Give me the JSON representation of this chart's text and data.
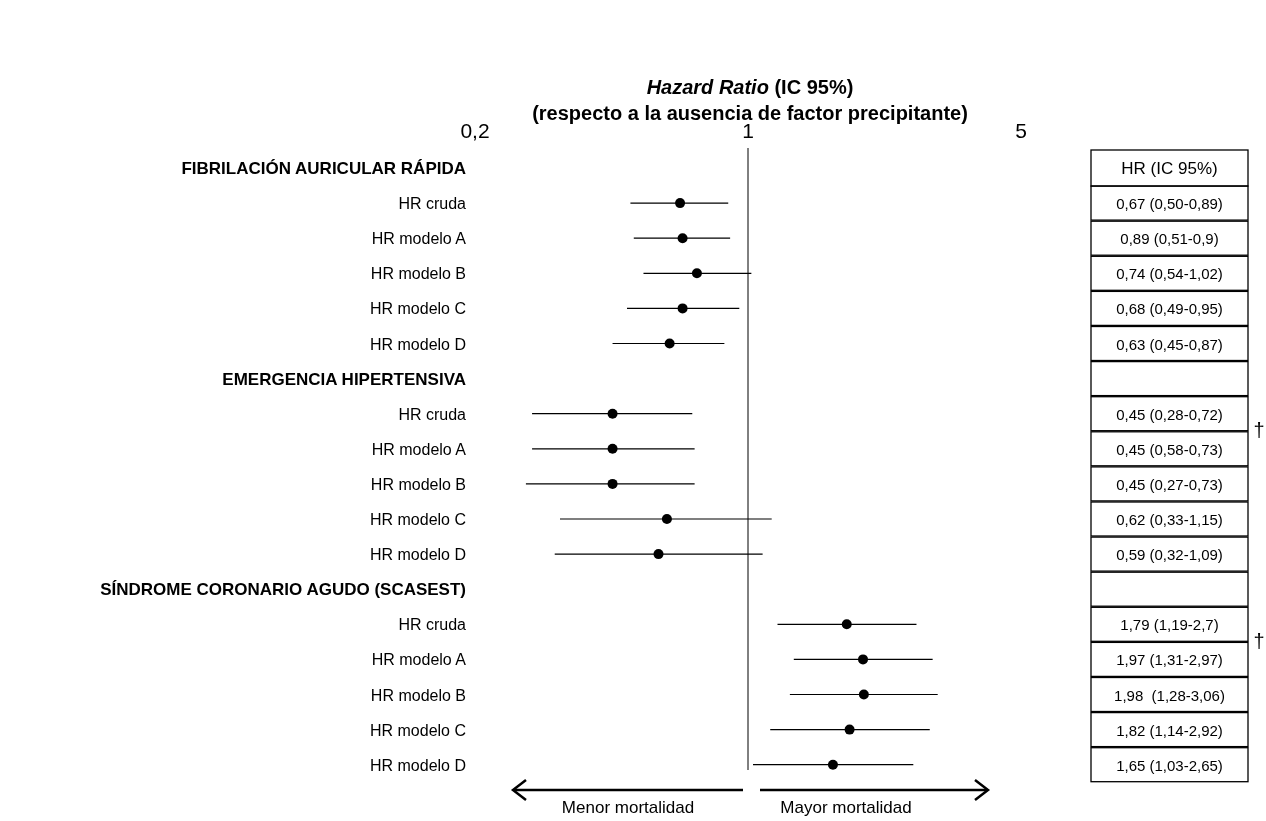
{
  "chart_data": {
    "type": "scatter",
    "orientation": "horizontal",
    "title": "Hazard Ratio (IC 95%)",
    "subtitle": "(respecto a la ausencia de factor precipitante)",
    "categories": [
      "FIBRILACIÓN AURICULAR RÁPIDA",
      "HR cruda",
      "HR modelo A",
      "HR modelo B",
      "HR modelo C",
      "HR modelo D",
      "EMERGENCIA HIPERTENSIVA",
      "HR cruda",
      "HR modelo A",
      "HR modelo B",
      "HR modelo C",
      "HR modelo D",
      "SÍNDROME CORONARIO AGUDO (SCASEST)",
      "HR cruda",
      "HR modelo A",
      "HR modelo B",
      "HR modelo C",
      "HR modelo D"
    ],
    "values": [
      null,
      0.67,
      0.68,
      0.74,
      0.68,
      0.63,
      null,
      0.45,
      0.45,
      0.45,
      0.62,
      0.59,
      null,
      1.79,
      1.97,
      1.98,
      1.82,
      1.65
    ],
    "errors": [
      null,
      [
        0.5,
        0.89
      ],
      [
        0.51,
        0.9
      ],
      [
        0.54,
        1.02
      ],
      [
        0.49,
        0.95
      ],
      [
        0.45,
        0.87
      ],
      null,
      [
        0.28,
        0.72
      ],
      [
        0.28,
        0.73
      ],
      [
        0.27,
        0.73
      ],
      [
        0.33,
        1.15
      ],
      [
        0.32,
        1.09
      ],
      null,
      [
        1.19,
        2.7
      ],
      [
        1.31,
        2.97
      ],
      [
        1.28,
        3.06
      ],
      [
        1.14,
        2.92
      ],
      [
        1.03,
        2.65
      ]
    ],
    "value_labels": [
      null,
      "0,67 (0,50-0,89)",
      "0,89 (0,51-0,9)",
      "0,74 (0,54-1,02)",
      "0,68 (0,49-0,95)",
      "0,63 (0,45-0,87)",
      null,
      "0,45 (0,28-0,72)",
      "0,45 (0,58-0,73)",
      "0,45 (0,27-0,73)",
      "0,62 (0,33-1,15)",
      "0,59 (0,32-1,09)",
      null,
      "1,79 (1,19-2,7)",
      "1,97 (1,31-2,97)",
      "1,98  (1,28-3,06)",
      "1,82 (1,14-2,92)",
      "1,65 (1,03-2,65)"
    ],
    "color": "#000000",
    "marker": "circle",
    "log": "x",
    "xlim": [
      0.2,
      5
    ],
    "xticks": [
      {
        "value": 0.2,
        "label": "0,2"
      },
      1,
      5
    ],
    "ref_lines": [
      {
        "axis": "x",
        "value": 1,
        "color": "#000000"
      }
    ],
    "annotations": [
      "HR (IC 95%)",
      "†",
      "†",
      "Menor mortalidad",
      "Mayor mortalidad"
    ]
  }
}
